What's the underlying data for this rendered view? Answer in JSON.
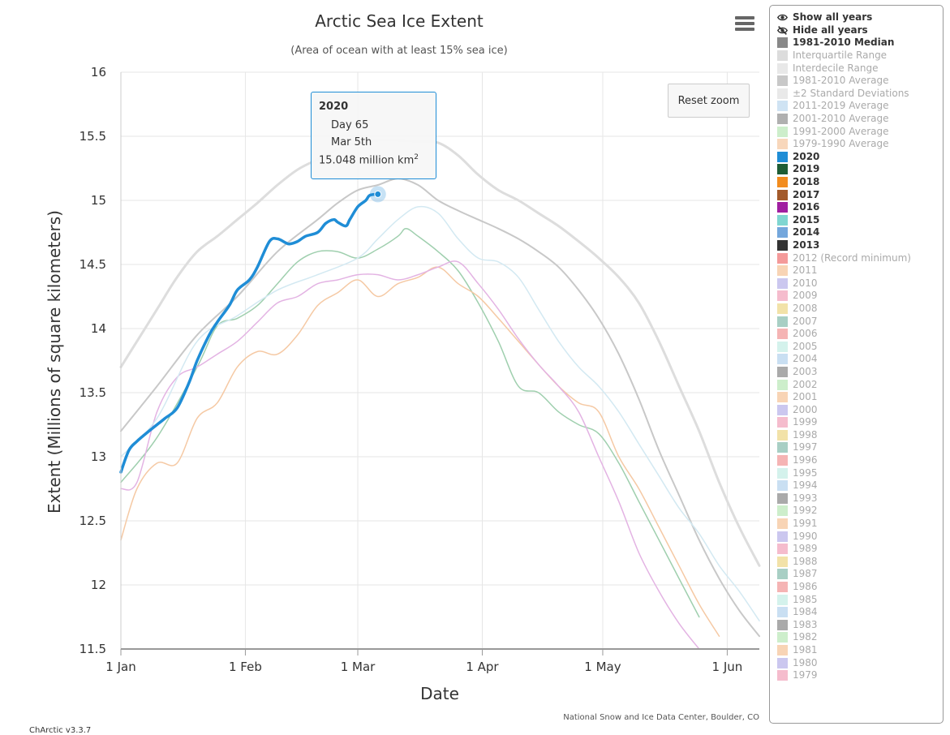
{
  "chart_data": {
    "type": "line",
    "title": "Arctic Sea Ice Extent",
    "subtitle": "(Area of ocean with at least 15% sea ice)",
    "xlabel": "Date",
    "ylabel": "Extent (Millions of square kilometers)",
    "xlim": [
      1,
      160
    ],
    "ylim": [
      11.5,
      16
    ],
    "x_ticks": [
      {
        "day": 1,
        "label": "1 Jan"
      },
      {
        "day": 32,
        "label": "1 Feb"
      },
      {
        "day": 60,
        "label": "1 Mar"
      },
      {
        "day": 91,
        "label": "1 Apr"
      },
      {
        "day": 121,
        "label": "1 May"
      },
      {
        "day": 152,
        "label": "1 Jun"
      }
    ],
    "y_ticks": [
      11.5,
      12,
      12.5,
      13,
      13.5,
      14,
      14.5,
      15,
      15.5,
      16
    ],
    "grid": true,
    "credit": "National Snow and Ice Data Center, Boulder, CO",
    "series": [
      {
        "name": "Interdecile upper bound",
        "color": "#dddddd",
        "width": 3,
        "x": [
          1,
          5,
          10,
          15,
          20,
          25,
          30,
          35,
          40,
          45,
          50,
          55,
          60,
          65,
          70,
          75,
          80,
          85,
          90,
          95,
          100,
          105,
          110,
          115,
          120,
          125,
          130,
          135,
          140,
          145,
          150,
          155,
          160
        ],
        "y": [
          13.7,
          13.9,
          14.15,
          14.4,
          14.6,
          14.72,
          14.85,
          14.98,
          15.12,
          15.24,
          15.32,
          15.4,
          15.45,
          15.47,
          15.47,
          15.46,
          15.45,
          15.35,
          15.2,
          15.08,
          15.0,
          14.9,
          14.8,
          14.68,
          14.55,
          14.4,
          14.2,
          13.9,
          13.55,
          13.2,
          12.8,
          12.45,
          12.15
        ]
      },
      {
        "name": "1981-2010 Average",
        "color": "#c8c8c8",
        "width": 2,
        "x": [
          1,
          10,
          20,
          30,
          40,
          50,
          55,
          60,
          65,
          70,
          75,
          80,
          85,
          90,
          95,
          100,
          105,
          110,
          115,
          120,
          125,
          130,
          135,
          140,
          145,
          150,
          155,
          160
        ],
        "y": [
          13.2,
          13.55,
          13.95,
          14.25,
          14.6,
          14.85,
          14.98,
          15.08,
          15.12,
          15.17,
          15.12,
          15.0,
          14.92,
          14.85,
          14.78,
          14.7,
          14.6,
          14.48,
          14.3,
          14.08,
          13.8,
          13.45,
          13.05,
          12.7,
          12.35,
          12.05,
          11.8,
          11.6
        ]
      },
      {
        "name": "2019",
        "color": "#9fcfae",
        "width": 1.5,
        "x": [
          1,
          10,
          20,
          25,
          30,
          35,
          40,
          45,
          50,
          55,
          60,
          65,
          70,
          72,
          75,
          80,
          85,
          90,
          95,
          100,
          105,
          110,
          115,
          120,
          125,
          130,
          135,
          140,
          145
        ],
        "y": [
          12.8,
          13.15,
          13.7,
          14.02,
          14.08,
          14.18,
          14.35,
          14.52,
          14.6,
          14.6,
          14.55,
          14.62,
          14.72,
          14.78,
          14.72,
          14.6,
          14.45,
          14.2,
          13.9,
          13.55,
          13.5,
          13.35,
          13.25,
          13.18,
          12.95,
          12.65,
          12.35,
          12.05,
          11.75
        ]
      },
      {
        "name": "2018",
        "color": "#f5c9a4",
        "width": 1.5,
        "x": [
          1,
          5,
          10,
          15,
          20,
          25,
          30,
          35,
          40,
          45,
          50,
          55,
          60,
          65,
          70,
          75,
          80,
          85,
          90,
          95,
          100,
          105,
          110,
          115,
          120,
          125,
          130,
          135,
          140,
          145,
          150
        ],
        "y": [
          12.35,
          12.75,
          12.95,
          12.95,
          13.3,
          13.42,
          13.7,
          13.82,
          13.8,
          13.95,
          14.18,
          14.28,
          14.38,
          14.25,
          14.35,
          14.4,
          14.48,
          14.35,
          14.25,
          14.08,
          13.9,
          13.72,
          13.55,
          13.42,
          13.35,
          13.0,
          12.75,
          12.45,
          12.15,
          11.85,
          11.6
        ]
      },
      {
        "name": "2017",
        "color": "#e3b3e3",
        "width": 1.5,
        "x": [
          1,
          5,
          10,
          15,
          20,
          25,
          30,
          35,
          40,
          45,
          50,
          55,
          60,
          65,
          70,
          75,
          80,
          85,
          90,
          95,
          100,
          105,
          110,
          115,
          120,
          125,
          130,
          135,
          140,
          145
        ],
        "y": [
          12.75,
          12.8,
          13.35,
          13.62,
          13.7,
          13.8,
          13.9,
          14.05,
          14.2,
          14.25,
          14.35,
          14.38,
          14.42,
          14.42,
          14.38,
          14.42,
          14.48,
          14.52,
          14.35,
          14.15,
          13.92,
          13.72,
          13.55,
          13.35,
          13.0,
          12.65,
          12.25,
          11.95,
          11.7,
          11.5
        ]
      },
      {
        "name": "2016",
        "color": "#d3e9f2",
        "width": 1.5,
        "x": [
          1,
          10,
          20,
          30,
          40,
          50,
          60,
          65,
          70,
          75,
          80,
          85,
          90,
          95,
          100,
          105,
          110,
          115,
          120,
          125,
          130,
          135,
          140,
          145,
          150,
          155,
          160
        ],
        "y": [
          13.0,
          13.3,
          13.9,
          14.1,
          14.3,
          14.42,
          14.55,
          14.7,
          14.85,
          14.95,
          14.9,
          14.7,
          14.55,
          14.52,
          14.4,
          14.15,
          13.9,
          13.7,
          13.55,
          13.35,
          13.1,
          12.85,
          12.6,
          12.4,
          12.15,
          11.95,
          11.72
        ]
      },
      {
        "name": "2020",
        "color": "#1f8dd6",
        "width": 3.5,
        "x": [
          1,
          3,
          5,
          8,
          10,
          12,
          15,
          18,
          20,
          23,
          25,
          28,
          30,
          33,
          35,
          38,
          40,
          42,
          43,
          45,
          47,
          50,
          52,
          54,
          55,
          57,
          58,
          60,
          62,
          63,
          65
        ],
        "y": [
          12.88,
          13.05,
          13.12,
          13.2,
          13.25,
          13.3,
          13.38,
          13.58,
          13.75,
          13.95,
          14.05,
          14.18,
          14.3,
          14.38,
          14.48,
          14.68,
          14.7,
          14.67,
          14.66,
          14.68,
          14.72,
          14.75,
          14.82,
          14.85,
          14.83,
          14.8,
          14.85,
          14.95,
          15.0,
          15.04,
          15.048
        ]
      }
    ],
    "highlight": {
      "series": "2020",
      "x": 65,
      "y": 15.048
    }
  },
  "tooltip": {
    "title": "2020",
    "day": "Day 65",
    "date": "Mar 5th",
    "value": "15.048 million km",
    "unit_sup": "2"
  },
  "controls": {
    "reset_zoom": "Reset zoom",
    "menu_icon": "hamburger-menu-icon"
  },
  "footer": {
    "version": "ChArctic v3.3.7"
  },
  "legend": {
    "show_all": "Show all years",
    "hide_all": "Hide all years",
    "items": [
      {
        "label": "1981-2010 Median",
        "color": "#888888",
        "active": true
      },
      {
        "label": "Interquartile Range",
        "color": "#dcdcdc",
        "active": false
      },
      {
        "label": "Interdecile Range",
        "color": "#e8e8e8",
        "active": false
      },
      {
        "label": "1981-2010 Average",
        "color": "#c8c8c8",
        "active": false
      },
      {
        "label": "±2 Standard Deviations",
        "color": "#e9e9e9",
        "active": false
      },
      {
        "label": "2011-2019 Average",
        "color": "#cfe3f3",
        "active": false
      },
      {
        "label": "2001-2010 Average",
        "color": "#b0b0b0",
        "active": false
      },
      {
        "label": "1991-2000 Average",
        "color": "#cdeecb",
        "active": false
      },
      {
        "label": "1979-1990 Average",
        "color": "#f8d7bb",
        "active": false
      },
      {
        "label": "2020",
        "color": "#1f8dd6",
        "active": true
      },
      {
        "label": "2019",
        "color": "#1e5d35",
        "active": true
      },
      {
        "label": "2018",
        "color": "#f28c1e",
        "active": true
      },
      {
        "label": "2017",
        "color": "#a35a2b",
        "active": true
      },
      {
        "label": "2016",
        "color": "#a01fa0",
        "active": true
      },
      {
        "label": "2015",
        "color": "#7fd6d1",
        "active": true
      },
      {
        "label": "2014",
        "color": "#74a7dc",
        "active": true
      },
      {
        "label": "2013",
        "color": "#333333",
        "active": true
      },
      {
        "label": "2012 (Record minimum)",
        "color": "#f49a9a",
        "active": false
      },
      {
        "label": "2011",
        "color": "#f8d4b5",
        "active": false
      },
      {
        "label": "2010",
        "color": "#cbc7ef",
        "active": false
      },
      {
        "label": "2009",
        "color": "#f5bccd",
        "active": false
      },
      {
        "label": "2008",
        "color": "#f2e2a8",
        "active": false
      },
      {
        "label": "2007",
        "color": "#a8cfc4",
        "active": false
      },
      {
        "label": "2006",
        "color": "#f5b4b4",
        "active": false
      },
      {
        "label": "2005",
        "color": "#d4f2ec",
        "active": false
      },
      {
        "label": "2004",
        "color": "#c9dff2",
        "active": false
      },
      {
        "label": "2003",
        "color": "#aaaaaa",
        "active": false
      },
      {
        "label": "2002",
        "color": "#cdeecb",
        "active": false
      },
      {
        "label": "2001",
        "color": "#f8d4b5",
        "active": false
      },
      {
        "label": "2000",
        "color": "#cbc7ef",
        "active": false
      },
      {
        "label": "1999",
        "color": "#f5bccd",
        "active": false
      },
      {
        "label": "1998",
        "color": "#f2e2a8",
        "active": false
      },
      {
        "label": "1997",
        "color": "#a8cfc4",
        "active": false
      },
      {
        "label": "1996",
        "color": "#f5b4b4",
        "active": false
      },
      {
        "label": "1995",
        "color": "#d4f2ec",
        "active": false
      },
      {
        "label": "1994",
        "color": "#c9dff2",
        "active": false
      },
      {
        "label": "1993",
        "color": "#aaaaaa",
        "active": false
      },
      {
        "label": "1992",
        "color": "#cdeecb",
        "active": false
      },
      {
        "label": "1991",
        "color": "#f8d4b5",
        "active": false
      },
      {
        "label": "1990",
        "color": "#cbc7ef",
        "active": false
      },
      {
        "label": "1989",
        "color": "#f5bccd",
        "active": false
      },
      {
        "label": "1988",
        "color": "#f2e2a8",
        "active": false
      },
      {
        "label": "1987",
        "color": "#a8cfc4",
        "active": false
      },
      {
        "label": "1986",
        "color": "#f5b4b4",
        "active": false
      },
      {
        "label": "1985",
        "color": "#d4f2ec",
        "active": false
      },
      {
        "label": "1984",
        "color": "#c9dff2",
        "active": false
      },
      {
        "label": "1983",
        "color": "#aaaaaa",
        "active": false
      },
      {
        "label": "1982",
        "color": "#cdeecb",
        "active": false
      },
      {
        "label": "1981",
        "color": "#f8d4b5",
        "active": false
      },
      {
        "label": "1980",
        "color": "#cbc7ef",
        "active": false
      },
      {
        "label": "1979",
        "color": "#f5bccd",
        "active": false
      }
    ]
  }
}
